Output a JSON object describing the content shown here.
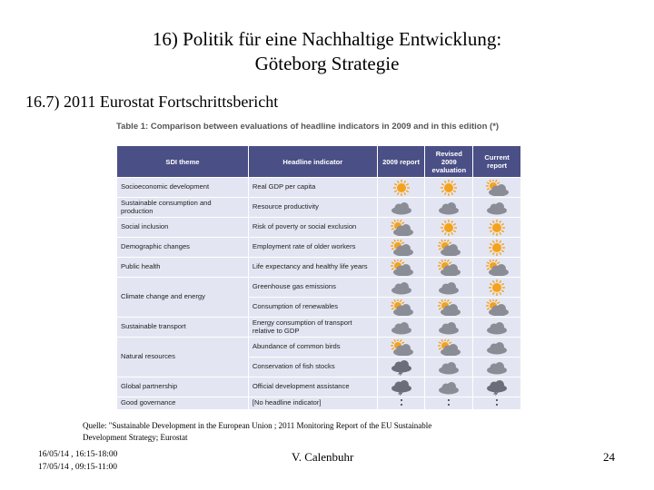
{
  "slide": {
    "title_line1": "16) Politik für eine Nachhaltige Entwicklung:",
    "title_line2": "Göteborg Strategie",
    "subtitle": "16.7) 2011 Eurostat Fortschrittsbericht"
  },
  "table": {
    "caption_bold": "Table 1:",
    "caption_rest": "Comparison between evaluations of headline indicators in 2009 and in this edition (*)",
    "headers": {
      "theme": "SDI theme",
      "indicator": "Headline indicator",
      "eval2009": "2009 report",
      "revised": "Revised 2009 evaluation",
      "current": "Current report"
    },
    "rows": [
      {
        "theme": "Socioeconomic development",
        "indicator": "Real GDP per capita",
        "weather": [
          "sun",
          "sun",
          "suncloud"
        ],
        "theme_rows": 1
      },
      {
        "theme": "Sustainable consumption and production",
        "indicator": "Resource productivity",
        "weather": [
          "cloud",
          "cloud",
          "cloud"
        ],
        "theme_rows": 1
      },
      {
        "theme": "Social inclusion",
        "indicator": "Risk of poverty or social exclusion",
        "weather": [
          "suncloud",
          "sun",
          "sun"
        ],
        "theme_rows": 1
      },
      {
        "theme": "Demographic changes",
        "indicator": "Employment rate of older workers",
        "weather": [
          "suncloud",
          "suncloud",
          "sun"
        ],
        "theme_rows": 1
      },
      {
        "theme": "Public health",
        "indicator": "Life expectancy and healthy life years",
        "weather": [
          "suncloud",
          "suncloud",
          "suncloud"
        ],
        "theme_rows": 1
      },
      {
        "theme": "Climate change and energy",
        "indicator": "Greenhouse gas emissions",
        "weather": [
          "cloud",
          "cloud",
          "sun"
        ],
        "theme_rows": 2
      },
      {
        "theme": "",
        "indicator": "Consumption of renewables",
        "weather": [
          "suncloud",
          "suncloud",
          "suncloud"
        ],
        "theme_rows": 0
      },
      {
        "theme": "Sustainable transport",
        "indicator": "Energy consumption of transport relative to GDP",
        "weather": [
          "cloud",
          "cloud",
          "cloud"
        ],
        "theme_rows": 1
      },
      {
        "theme": "Natural resources",
        "indicator": "Abundance of common birds",
        "weather": [
          "suncloud",
          "suncloud",
          "cloud"
        ],
        "theme_rows": 2
      },
      {
        "theme": "",
        "indicator": "Conservation of fish stocks",
        "weather": [
          "storm",
          "cloud",
          "cloud"
        ],
        "theme_rows": 0
      },
      {
        "theme": "Global partnership",
        "indicator": "Official development assistance",
        "weather": [
          "storm",
          "cloud",
          "storm"
        ],
        "theme_rows": 1
      },
      {
        "theme": "Good governance",
        "indicator": "[No headline indicator]",
        "weather": [
          ":",
          ":",
          ":"
        ],
        "theme_rows": 1
      }
    ]
  },
  "footer": {
    "source_line1": "Quelle: \"Sustainable Development in the European Union ; 2011 Monitoring Report of the EU Sustainable",
    "source_line2": "Development Strategy; Eurostat",
    "date1": "16/05/14 , 16:15-18:00",
    "date2": "17/05/14 , 09:15-11:00",
    "author": "V. Calenbuhr",
    "page": "24"
  },
  "colors": {
    "header_bg": "#4a4f86",
    "row_bg": "#e3e6f2",
    "sun": "#f5a21b",
    "cloud": "#8a8d96"
  }
}
